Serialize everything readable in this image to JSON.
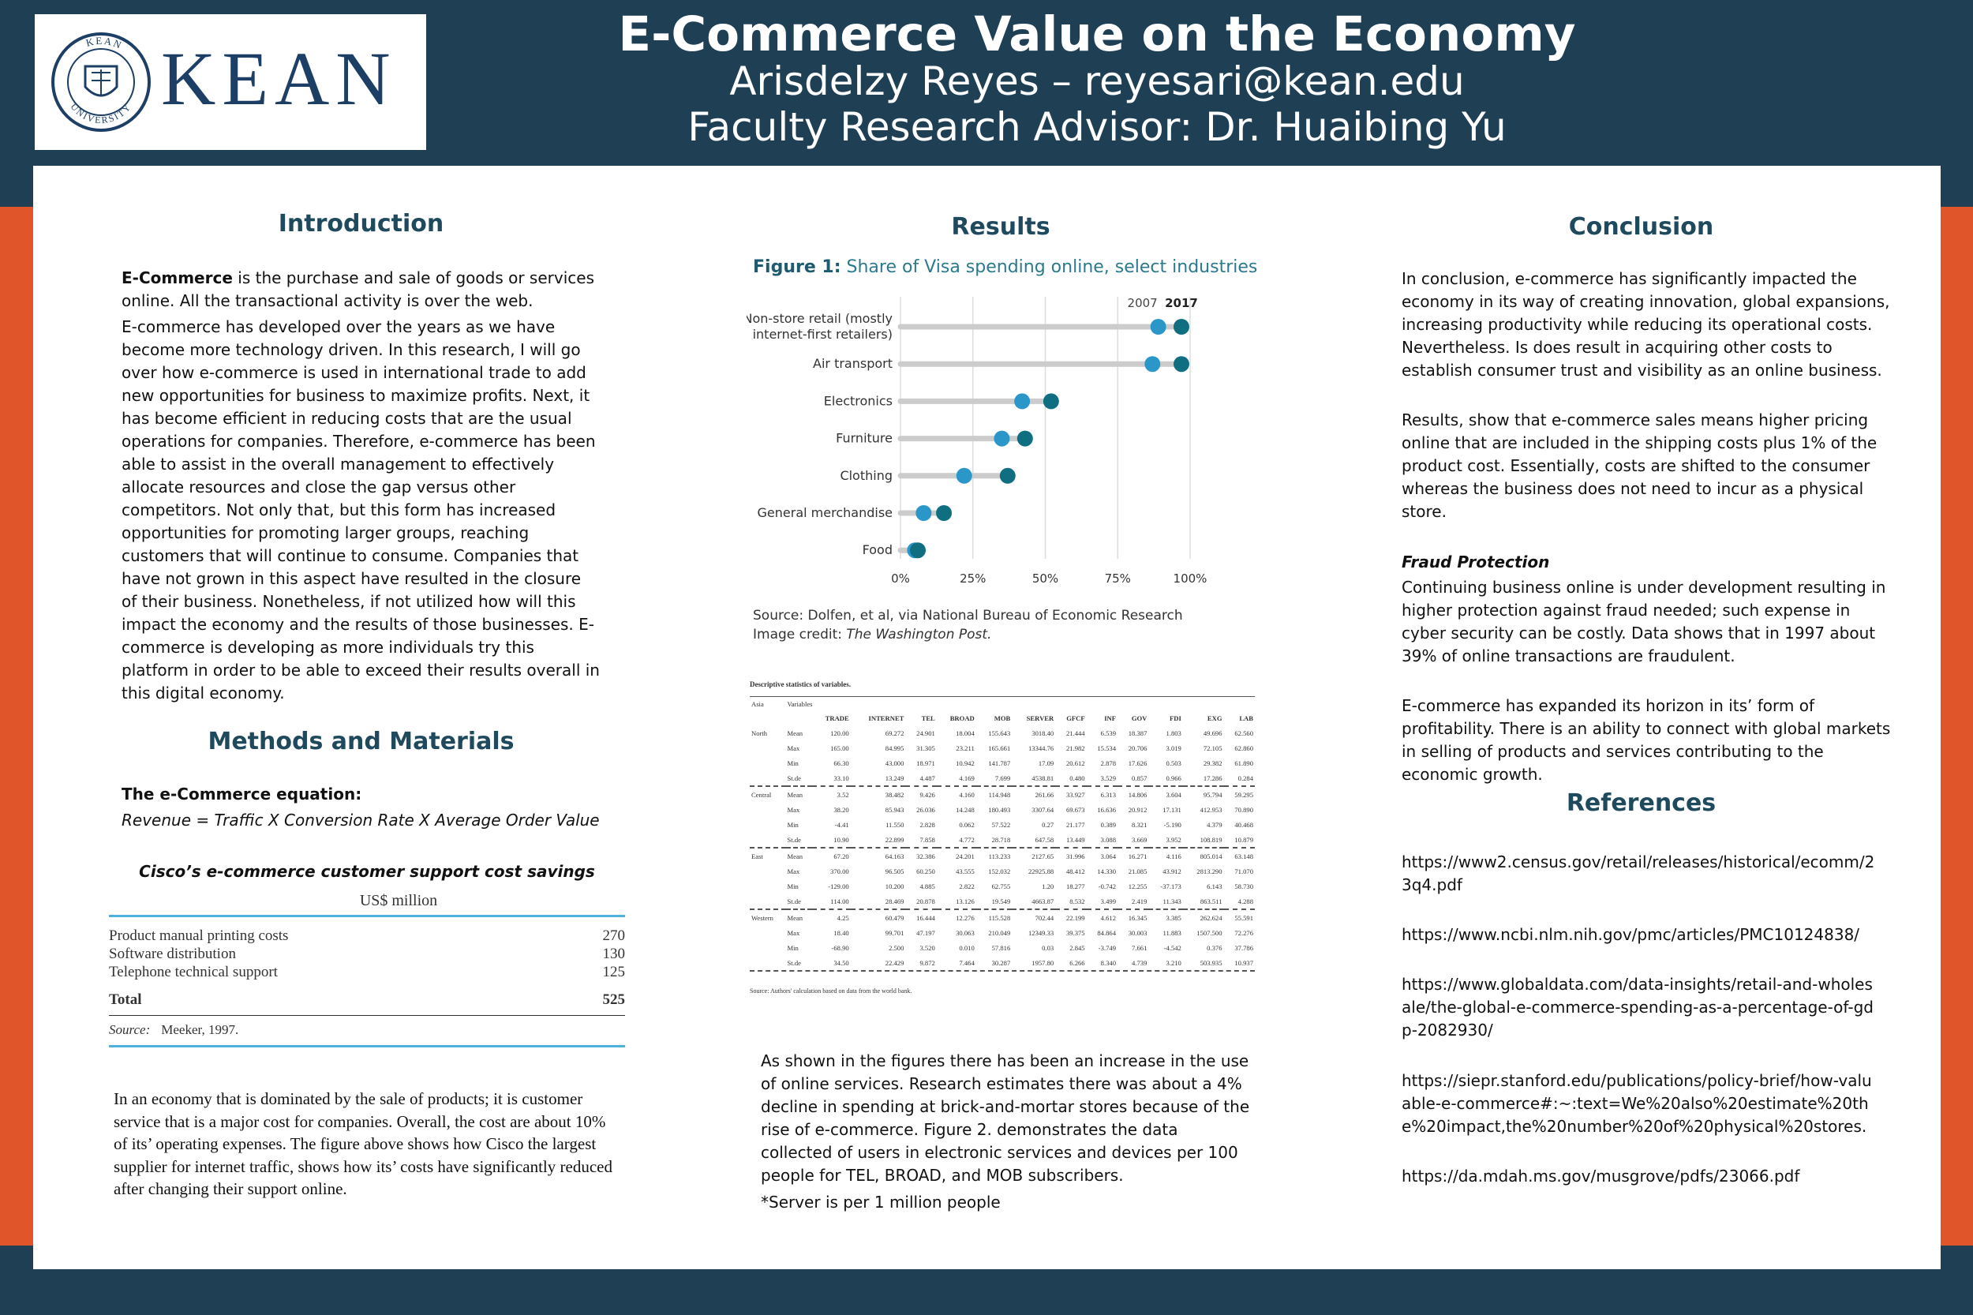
{
  "header": {
    "logo_text": "KEAN",
    "logo_seal_text": "KEAN UNIVERSITY",
    "title": "E-Commerce Value on the Economy",
    "author": "Arisdelzy Reyes – reyesari@kean.edu",
    "advisor": "Faculty Research Advisor: Dr. Huaibing Yu"
  },
  "colors": {
    "navy": "#1f3f55",
    "orange": "#e0562a",
    "dot2007": "#2b97c9",
    "dot2017": "#0f6f80",
    "heading": "#1f4a5e"
  },
  "introduction": {
    "heading": "Introduction",
    "p1_bold": "E-Commerce",
    "p1_rest": " is the purchase and sale of goods or services online. All the transactional activity is over the web.",
    "p2": "E-commerce has developed over the years as we have become more technology driven. In this research, I will go over how e-commerce is used in international trade to add new opportunities for business to maximize profits. Next, it has become efficient in reducing costs that are the usual operations for companies. Therefore, e-commerce has been able to assist in the overall management to effectively allocate resources and close the gap versus other competitors. Not only that, but this form has increased opportunities for promoting larger groups, reaching customers that will continue to consume. Companies that have not grown in this aspect have resulted in the closure of their business. Nonetheless, if not utilized how will this impact the economy and the results of those businesses. E-commerce is developing as more individuals try this platform in order to be able to exceed their results overall in this digital economy."
  },
  "methods": {
    "heading": "Methods and Materials",
    "equation_label": "The e-Commerce equation:",
    "equation": "Revenue = Traffic X Conversion Rate X Average Order Value",
    "cisco_title": "Cisco’s e-commerce customer support cost savings",
    "cisco_unit": "US$ million",
    "cisco_rows": [
      {
        "label": "Product manual printing costs",
        "value": "270"
      },
      {
        "label": "Software distribution",
        "value": "130"
      },
      {
        "label": "Telephone technical support",
        "value": "125"
      }
    ],
    "cisco_total_label": "Total",
    "cisco_total_value": "525",
    "cisco_source_label": "Source:",
    "cisco_source": "Meeker, 1997.",
    "paragraph": "In an economy that is dominated by the sale of products; it is customer service that is a major cost for companies. Overall, the cost are about 10% of its’ operating expenses. The figure above shows how Cisco the largest supplier for internet traffic, shows how its’ costs have significantly reduced after changing their support online."
  },
  "results": {
    "heading": "Results",
    "figure_label": "Figure 1:",
    "figure_title": " Share of Visa spending online, select industries",
    "source_line": "Source:  Dolfen, et al, via National Bureau of Economic Research",
    "credit_label": "Image credit: ",
    "credit": "The Washington Post.",
    "stats_title": "Descriptive statistics of variables.",
    "stats_source": "Source: Authors' calculation based on data from the world bank.",
    "stats_region_label": "Asia",
    "stats_variables_label": "Variables",
    "stats_columns": [
      "TRADE",
      "INTERNET",
      "TEL",
      "BROAD",
      "MOB",
      "SERVER",
      "GFCF",
      "INF",
      "GOV",
      "FDI",
      "EXG",
      "LAB"
    ],
    "stats_rows": [
      {
        "region": "North",
        "stat": "Mean",
        "v": [
          "120.00",
          "69.272",
          "24.901",
          "18.004",
          "155.643",
          "3018.40",
          "21.444",
          "6.539",
          "18.387",
          "1.803",
          "49.696",
          "62.560"
        ]
      },
      {
        "region": "",
        "stat": "Max",
        "v": [
          "165.00",
          "84.995",
          "31.305",
          "23.211",
          "165.661",
          "13344.76",
          "21.982",
          "15.534",
          "20.706",
          "3.019",
          "72.105",
          "62.860"
        ]
      },
      {
        "region": "",
        "stat": "Min",
        "v": [
          "66.30",
          "43.000",
          "18.971",
          "10.942",
          "141.787",
          "17.09",
          "20.612",
          "2.878",
          "17.626",
          "0.503",
          "29.382",
          "61.890"
        ]
      },
      {
        "region": "",
        "stat": "St.de",
        "v": [
          "33.10",
          "13.249",
          "4.487",
          "4.169",
          "7.699",
          "4538.81",
          "0.480",
          "3.529",
          "0.857",
          "0.966",
          "17.286",
          "0.284"
        ]
      },
      {
        "region": "Central",
        "stat": "Mean",
        "v": [
          "3.52",
          "38.482",
          "9.426",
          "4.160",
          "114.948",
          "261.66",
          "33.927",
          "6.313",
          "14.806",
          "3.604",
          "95.794",
          "59.295"
        ]
      },
      {
        "region": "",
        "stat": "Max",
        "v": [
          "38.20",
          "85.943",
          "26.036",
          "14.248",
          "180.493",
          "3307.64",
          "69.673",
          "16.636",
          "20.912",
          "17.131",
          "412.953",
          "70.890"
        ]
      },
      {
        "region": "",
        "stat": "Min",
        "v": [
          "-4.41",
          "11.550",
          "2.828",
          "0.062",
          "57.522",
          "0.27",
          "21.177",
          "0.389",
          "8.321",
          "-5.190",
          "4.379",
          "40.468"
        ]
      },
      {
        "region": "",
        "stat": "St.de",
        "v": [
          "10.90",
          "22.899",
          "7.858",
          "4.772",
          "28.718",
          "647.58",
          "13.449",
          "3.088",
          "3.669",
          "3.952",
          "108.819",
          "10.879"
        ]
      },
      {
        "region": "East",
        "stat": "Mean",
        "v": [
          "67.20",
          "64.163",
          "32.386",
          "24.201",
          "113.233",
          "2127.65",
          "31.996",
          "3.064",
          "16.271",
          "4.116",
          "805.014",
          "63.148"
        ]
      },
      {
        "region": "",
        "stat": "Max",
        "v": [
          "370.00",
          "96.505",
          "60.250",
          "43.555",
          "152.032",
          "22925.88",
          "48.412",
          "14.330",
          "21.085",
          "43.912",
          "2813.290",
          "71.070"
        ]
      },
      {
        "region": "",
        "stat": "Min",
        "v": [
          "-129.00",
          "10.200",
          "4.885",
          "2.822",
          "62.755",
          "1.20",
          "18.277",
          "-0.742",
          "12.255",
          "-37.173",
          "6.143",
          "58.730"
        ]
      },
      {
        "region": "",
        "stat": "St.de",
        "v": [
          "114.00",
          "28.469",
          "20.878",
          "13.126",
          "19.549",
          "4663.87",
          "8.532",
          "3.499",
          "2.419",
          "11.343",
          "863.511",
          "4.288"
        ]
      },
      {
        "region": "Western",
        "stat": "Mean",
        "v": [
          "4.25",
          "60.479",
          "16.444",
          "12.276",
          "115.528",
          "702.44",
          "22.199",
          "4.612",
          "16.345",
          "3.385",
          "262.624",
          "55.591"
        ]
      },
      {
        "region": "",
        "stat": "Max",
        "v": [
          "18.40",
          "99.701",
          "47.197",
          "30.063",
          "210.049",
          "12349.33",
          "39.375",
          "84.864",
          "30.003",
          "11.883",
          "1507.500",
          "72.276"
        ]
      },
      {
        "region": "",
        "stat": "Min",
        "v": [
          "-68.90",
          "2.500",
          "3.520",
          "0.010",
          "57.816",
          "0.03",
          "2.845",
          "-3.749",
          "7.661",
          "-4.542",
          "0.376",
          "37.786"
        ]
      },
      {
        "region": "",
        "stat": "St.de",
        "v": [
          "34.50",
          "22.429",
          "9.872",
          "7.464",
          "30.287",
          "1957.80",
          "6.266",
          "8.340",
          "4.739",
          "3.210",
          "503.935",
          "10.937"
        ]
      }
    ],
    "paragraph": "As shown in the figures there has been an increase in the use of online services. Research estimates there was about a 4% decline in spending at brick-and-mortar stores because of the rise of e-commerce. Figure 2. demonstrates the data collected of users in electronic services and devices per 100 people for TEL, BROAD, and MOB subscribers.",
    "note": "*Server is per 1 million people"
  },
  "chart_data": {
    "type": "scatter",
    "title": "Share of Visa spending online, select industries",
    "series": [
      {
        "name": "2007",
        "values": [
          89,
          87,
          42,
          35,
          22,
          8,
          5
        ]
      },
      {
        "name": "2017",
        "values": [
          97,
          97,
          52,
          43,
          37,
          15,
          6
        ]
      }
    ],
    "categories": [
      "Non-store retail (mostly internet-first retailers)",
      "Air transport",
      "Electronics",
      "Furniture",
      "Clothing",
      "General merchandise",
      "Food"
    ],
    "category_lines": [
      [
        "Non-store retail (mostly",
        "internet-first retailers)"
      ],
      [
        "Air transport"
      ],
      [
        "Electronics"
      ],
      [
        "Furniture"
      ],
      [
        "Clothing"
      ],
      [
        "General merchandise"
      ],
      [
        "Food"
      ]
    ],
    "xticks": [
      "0%",
      "25%",
      "50%",
      "75%",
      "100%"
    ],
    "xlim": [
      0,
      100
    ],
    "legend": "top-right",
    "colors": [
      "#2b97c9",
      "#0f6f80"
    ]
  },
  "conclusion": {
    "heading": "Conclusion",
    "p1": "In conclusion, e-commerce has significantly impacted the economy in its way of creating innovation, global expansions, increasing productivity while reducing its operational costs. Nevertheless. Is does result in acquiring other costs  to establish consumer trust and visibility as an online business.",
    "p2": "Results, show that e-commerce sales means higher pricing online that are included in the shipping costs plus 1% of the product cost. Essentially, costs are shifted to the consumer whereas the business does not need to incur as a physical store.",
    "fraud_heading": "Fraud Protection",
    "p3": "Continuing business online is under development resulting in higher protection against fraud needed; such expense in cyber security can be costly. Data shows that in 1997 about 39% of online transactions are fraudulent.",
    "p4": "E-commerce has expanded its horizon in its’ form of profitability. There is an ability to connect  with global markets in selling of products and services contributing to the economic growth."
  },
  "references": {
    "heading": "References",
    "items": [
      "https://www2.census.gov/retail/releases/historical/ecomm/23q4.pdf",
      "https://www.ncbi.nlm.nih.gov/pmc/articles/PMC10124838/",
      "https://www.globaldata.com/data-insights/retail-and-wholesale/the-global-e-commerce-spending-as-a-percentage-of-gdp-2082930/",
      "https://siepr.stanford.edu/publications/policy-brief/how-valuable-e-commerce#:~:text=We%20also%20estimate%20the%20impact,the%20number%20of%20physical%20stores.",
      "https://da.mdah.ms.gov/musgrove/pdfs/23066.pdf"
    ]
  }
}
